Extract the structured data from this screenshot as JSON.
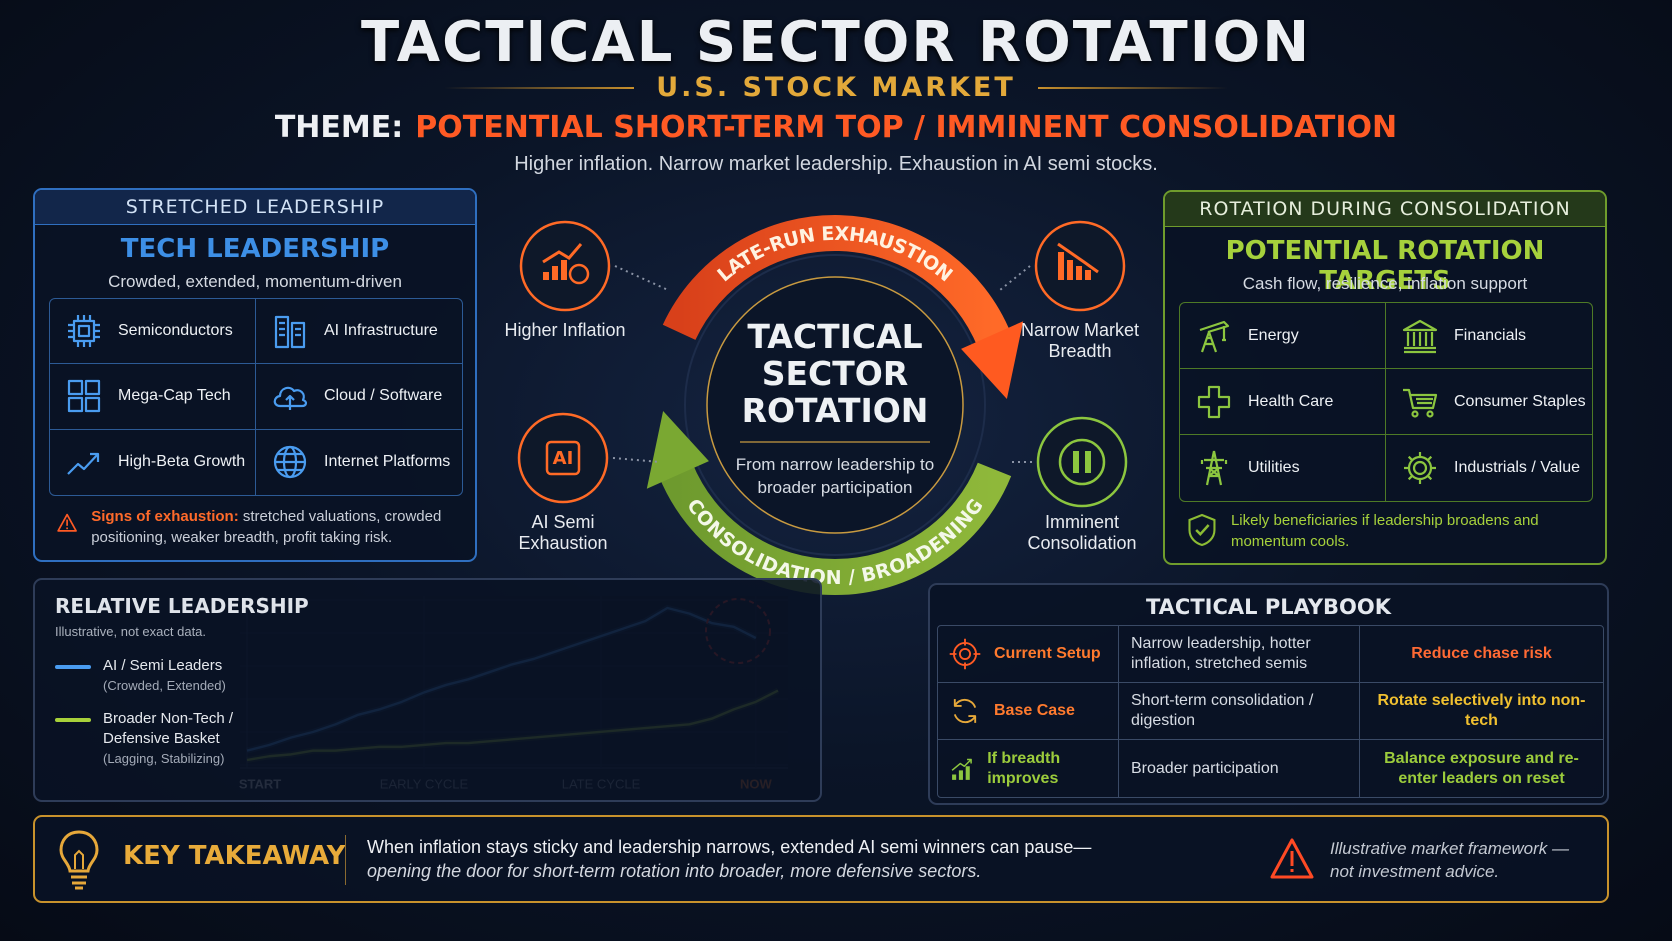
{
  "header": {
    "title": "TACTICAL SECTOR ROTATION",
    "subtitle": "U.S. STOCK MARKET",
    "theme_label": "THEME:",
    "theme": "POTENTIAL SHORT-TERM TOP / IMMINENT CONSOLIDATION",
    "description": "Higher inflation. Narrow market leadership. Exhaustion in AI semi stocks."
  },
  "left_panel": {
    "header": "STRETCHED LEADERSHIP",
    "title": "TECH LEADERSHIP",
    "subtitle": "Crowded, extended, momentum-driven",
    "items": [
      "Semiconductors",
      "AI Infrastructure",
      "Mega-Cap Tech",
      "Cloud / Software",
      "High-Beta Growth",
      "Internet Platforms"
    ],
    "warning_label": "Signs of exhaustion:",
    "warning_text": "stretched valuations, crowded positioning, weaker breadth, profit taking risk."
  },
  "cycle": {
    "top_arc": "LATE-RUN EXHAUSTION",
    "bottom_arc": "CONSOLIDATION / BROADENING",
    "center_title": "TACTICAL SECTOR ROTATION",
    "center_text": "From narrow leadership to broader participation",
    "nodes": [
      "Higher Inflation",
      "Narrow Market Breadth",
      "AI Semi Exhaustion",
      "Imminent Consolidation"
    ]
  },
  "right_panel": {
    "header": "ROTATION DURING CONSOLIDATION",
    "title": "POTENTIAL ROTATION TARGETS",
    "subtitle": "Cash flow, resilience, inflation support",
    "items": [
      "Energy",
      "Financials",
      "Health Care",
      "Consumer Staples",
      "Utilities",
      "Industrials / Value"
    ],
    "note": "Likely beneficiaries if leadership broadens and momentum cools."
  },
  "chart_data": {
    "type": "line",
    "title": "RELATIVE LEADERSHIP",
    "subtitle": "Illustrative, not exact data.",
    "x": [
      0,
      1,
      2,
      3,
      4,
      5,
      6,
      7,
      8,
      9,
      10,
      11,
      12,
      13,
      14,
      15,
      16,
      17,
      18,
      19,
      20,
      21,
      22,
      23,
      24
    ],
    "xlim": [
      0,
      24
    ],
    "xticks": [
      {
        "value": 0,
        "label": "START"
      },
      {
        "value": 8,
        "label": "EARLY CYCLE"
      },
      {
        "value": 16,
        "label": "LATE CYCLE"
      },
      {
        "value": 23,
        "label": "NOW"
      }
    ],
    "series": [
      {
        "name": "AI / Semi Leaders",
        "note": "(Crowded, Extended)",
        "color": "#4a9cf0",
        "values": [
          8,
          11,
          15,
          18,
          22,
          27,
          30,
          34,
          39,
          43,
          46,
          50,
          54,
          57,
          61,
          65,
          69,
          73,
          77,
          84,
          81,
          76,
          74,
          68,
          null
        ]
      },
      {
        "name": "Broader Non-Tech / Defensive Basket",
        "note": "(Lagging, Stabilizing)",
        "color": "#a8d13a",
        "values": [
          3,
          5,
          6,
          8,
          8,
          9,
          10,
          10,
          11,
          12,
          12,
          13,
          14,
          15,
          16,
          17,
          18,
          19,
          20,
          21,
          22,
          25,
          30,
          34,
          40
        ]
      }
    ]
  },
  "playbook": {
    "title": "TACTICAL PLAYBOOK",
    "rows": [
      [
        "Current Setup",
        "Narrow leadership, hotter inflation, stretched semis",
        "Reduce chase risk"
      ],
      [
        "Base Case",
        "Short-term consolidation / digestion",
        "Rotate selectively into non-tech"
      ],
      [
        "If breadth improves",
        "Broader participation",
        "Balance exposure and re-enter leaders on reset"
      ]
    ]
  },
  "takeaway": {
    "label": "KEY TAKEAWAY",
    "line1": "When inflation stays sticky and leadership narrows, extended AI semi winners can pause—",
    "line2": "opening the door for short-term rotation into broader, more defensive sectors.",
    "disclaimer": "Illustrative market framework — not investment advice."
  }
}
